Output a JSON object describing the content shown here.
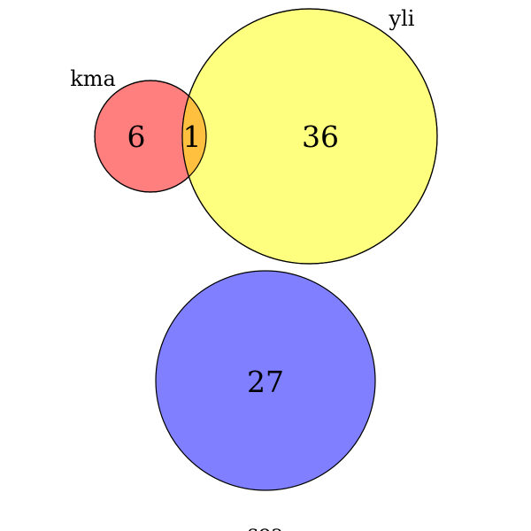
{
  "sets": [
    {
      "id": "kma",
      "label": "kma",
      "color": "#ff7f7f"
    },
    {
      "id": "yli",
      "label": "yli",
      "color": "#ffff7f"
    },
    {
      "id": "sea",
      "label": "sea",
      "color": "#7f7fff"
    }
  ],
  "regions": {
    "kma_only": "6",
    "kma_yli": "1",
    "yli_only": "36",
    "sea_only": "27"
  },
  "colors": {
    "intersection": "#ffbf3f",
    "outline": "#000000",
    "background": "#ffffff"
  }
}
